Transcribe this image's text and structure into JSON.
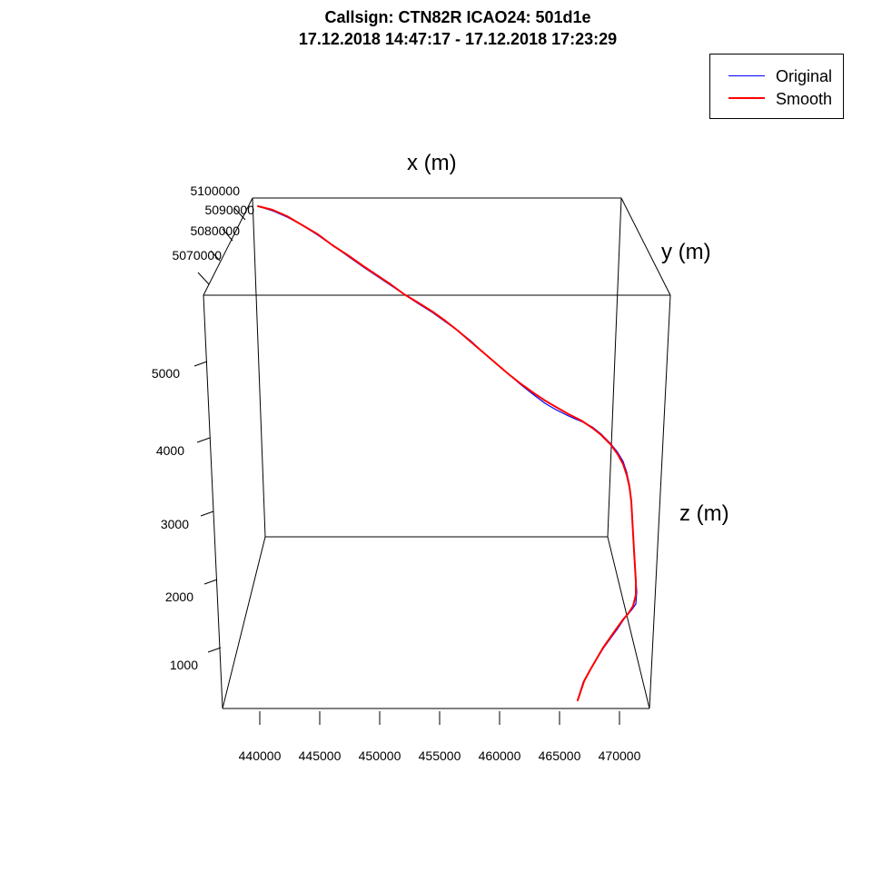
{
  "header": {
    "title_line1": "Callsign: CTN82R   ICAO24: 501d1e",
    "title_line2": "17.12.2018 14:47:17 - 17.12.2018 17:23:29"
  },
  "legend": {
    "items": [
      {
        "label": "Original",
        "color": "#0000FF"
      },
      {
        "label": "Smooth",
        "color": "#FF0000"
      }
    ]
  },
  "chart_data": {
    "type": "line",
    "projection": "3d-perspective",
    "xlabel": "x (m)",
    "ylabel": "y (m)",
    "zlabel": "z (m)",
    "x_ticks": [
      "440000",
      "445000",
      "450000",
      "455000",
      "460000",
      "465000",
      "470000"
    ],
    "y_ticks": [
      "5070000",
      "5080000",
      "5090000",
      "5100000"
    ],
    "z_ticks": [
      "1000",
      "2000",
      "3000",
      "4000",
      "5000"
    ],
    "grid": false,
    "legend_position": "top-right",
    "series": [
      {
        "name": "Original",
        "color": "#0000FF",
        "points": [
          [
            284,
            227
          ],
          [
            300,
            232
          ],
          [
            316,
            239
          ],
          [
            333,
            248
          ],
          [
            350,
            259
          ],
          [
            366,
            270
          ],
          [
            383,
            282
          ],
          [
            400,
            294
          ],
          [
            415,
            304
          ],
          [
            430,
            314
          ],
          [
            445,
            324
          ],
          [
            460,
            334
          ],
          [
            476,
            344
          ],
          [
            490,
            354
          ],
          [
            504,
            364
          ],
          [
            518,
            375
          ],
          [
            532,
            388
          ],
          [
            546,
            400
          ],
          [
            560,
            412
          ],
          [
            574,
            424
          ],
          [
            588,
            435
          ],
          [
            600,
            444
          ],
          [
            612,
            451
          ],
          [
            626,
            458
          ],
          [
            640,
            464
          ],
          [
            652,
            470
          ],
          [
            662,
            478
          ],
          [
            672,
            488
          ],
          [
            680,
            498
          ],
          [
            686,
            508
          ],
          [
            690,
            520
          ],
          [
            693,
            534
          ],
          [
            695,
            550
          ],
          [
            696,
            568
          ],
          [
            697,
            588
          ],
          [
            698,
            605
          ],
          [
            699,
            620
          ],
          [
            700,
            636
          ],
          [
            701,
            652
          ],
          [
            700,
            665
          ],
          [
            695,
            672
          ],
          [
            688,
            680
          ],
          [
            680,
            692
          ],
          [
            672,
            703
          ],
          [
            664,
            714
          ],
          [
            656,
            727
          ],
          [
            648,
            740
          ],
          [
            642,
            751
          ],
          [
            636,
            770
          ]
        ]
      },
      {
        "name": "Smooth",
        "color": "#FF0000",
        "points": [
          [
            284,
            227
          ],
          [
            300,
            231
          ],
          [
            316,
            238
          ],
          [
            333,
            248
          ],
          [
            350,
            258
          ],
          [
            366,
            270
          ],
          [
            383,
            281
          ],
          [
            400,
            293
          ],
          [
            415,
            303
          ],
          [
            430,
            313
          ],
          [
            445,
            324
          ],
          [
            460,
            333
          ],
          [
            476,
            343
          ],
          [
            490,
            353
          ],
          [
            504,
            364
          ],
          [
            518,
            376
          ],
          [
            532,
            388
          ],
          [
            546,
            400
          ],
          [
            560,
            412
          ],
          [
            574,
            423
          ],
          [
            588,
            433
          ],
          [
            600,
            441
          ],
          [
            612,
            448
          ],
          [
            626,
            456
          ],
          [
            640,
            463
          ],
          [
            652,
            471
          ],
          [
            662,
            479
          ],
          [
            672,
            489
          ],
          [
            680,
            500
          ],
          [
            686,
            511
          ],
          [
            690,
            523
          ],
          [
            693,
            536
          ],
          [
            695,
            552
          ],
          [
            696,
            570
          ],
          [
            697,
            588
          ],
          [
            698,
            606
          ],
          [
            699,
            623
          ],
          [
            700,
            640
          ],
          [
            700,
            655
          ],
          [
            697,
            667
          ],
          [
            692,
            675
          ],
          [
            686,
            682
          ],
          [
            678,
            693
          ],
          [
            671,
            703
          ],
          [
            664,
            713
          ],
          [
            657,
            725
          ],
          [
            650,
            737
          ],
          [
            643,
            750
          ],
          [
            636,
            771
          ]
        ]
      }
    ]
  }
}
